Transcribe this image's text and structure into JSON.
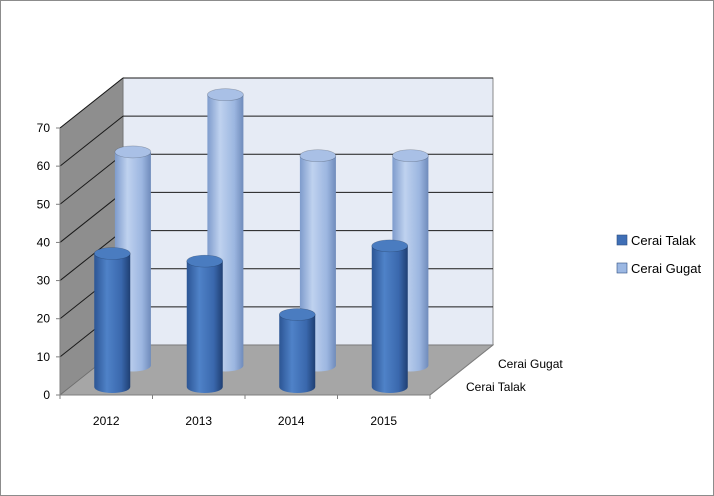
{
  "chart_data": {
    "type": "bar",
    "subtype": "3d-cylinder",
    "title": "",
    "xlabel": "",
    "ylabel": "",
    "categories": [
      "2012",
      "2013",
      "2014",
      "2015"
    ],
    "series": [
      {
        "name": "Cerai Talak",
        "values": [
          35,
          33,
          19,
          37
        ],
        "color": "#3f6fb6"
      },
      {
        "name": "Cerai Gugat",
        "values": [
          56,
          71,
          55,
          55
        ],
        "color": "#9cb8e3"
      }
    ],
    "ylim": [
      0,
      70
    ],
    "yticks": [
      "0",
      "10",
      "20",
      "30",
      "40",
      "50",
      "60",
      "70"
    ],
    "depth_axis_labels": [
      "Cerai Talak",
      "Cerai Gugat"
    ],
    "grid": true,
    "legend_position": "right"
  },
  "colors": {
    "back_wall": "#e6ebf5",
    "side_wall": "#8e8e8e",
    "floor": "#a6a6a6",
    "grid": "#1a1a1a"
  }
}
